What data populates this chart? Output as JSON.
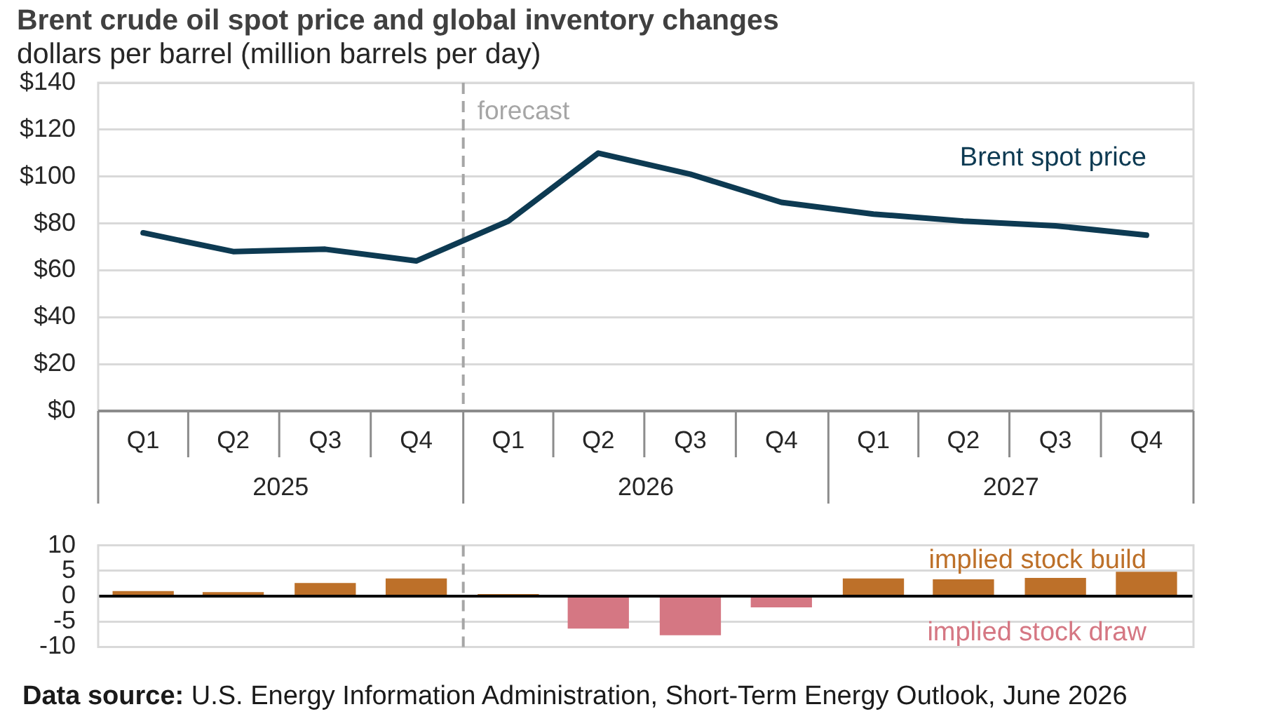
{
  "chart_data": [
    {
      "type": "line",
      "title": "Brent crude oil spot price and global inventory changes",
      "subtitle": "dollars per barrel (million barrels per day)",
      "x": [
        "2025-02-15",
        "2025-05-16",
        "2025-08-16",
        "2025-11-15",
        "2026-02-15",
        "2026-05-16",
        "2026-08-16",
        "2026-11-15",
        "2027-02-15",
        "2027-05-16",
        "2027-08-16",
        "2027-11-15"
      ],
      "series": [
        {
          "name": "Brent spot price",
          "color": "#0d3a52",
          "values": [
            76,
            68,
            69,
            64,
            81,
            110,
            101,
            89,
            84,
            81,
            79,
            75
          ]
        }
      ],
      "xlim": [
        "2025-01-01",
        "2028-01-01"
      ],
      "xticks": [
        {
          "value": "2025-02-15",
          "label": "Q1"
        },
        {
          "value": "2025-05-16",
          "label": "Q2"
        },
        {
          "value": "2025-08-16",
          "label": "Q3"
        },
        {
          "value": "2025-11-15",
          "label": "Q4"
        },
        {
          "value": "2026-02-15",
          "label": "Q1"
        },
        {
          "value": "2026-05-16",
          "label": "Q2"
        },
        {
          "value": "2026-08-16",
          "label": "Q3"
        },
        {
          "value": "2026-11-15",
          "label": "Q4"
        },
        {
          "value": "2027-02-15",
          "label": "Q1"
        },
        {
          "value": "2027-05-16",
          "label": "Q2"
        },
        {
          "value": "2027-08-16",
          "label": "Q3"
        },
        {
          "value": "2027-11-15",
          "label": "Q4"
        }
      ],
      "ylim": [
        0,
        140
      ],
      "yticks": [
        {
          "value": 0,
          "label": "$0"
        },
        {
          "value": 20,
          "label": "$20"
        },
        {
          "value": 40,
          "label": "$40"
        },
        {
          "value": 60,
          "label": "$60"
        },
        {
          "value": 80,
          "label": "$80"
        },
        {
          "value": 100,
          "label": "$100"
        },
        {
          "value": 120,
          "label": "$120"
        },
        {
          "value": 140,
          "label": "$140"
        }
      ],
      "grid": "y",
      "line_style": "solid",
      "ref_lines": [
        {
          "axis": "x",
          "value": "2026-01-01",
          "label": "forecast",
          "color": "#a6a6a6",
          "line_style": "dashed"
        }
      ],
      "annotations": [
        "2025",
        "2026",
        "2027"
      ]
    },
    {
      "type": "bar",
      "x": [
        "2025-02-15",
        "2025-05-16",
        "2025-08-16",
        "2025-11-15",
        "2026-02-15",
        "2026-05-16",
        "2026-08-16",
        "2026-11-15",
        "2027-02-15",
        "2027-05-16",
        "2027-08-16",
        "2027-11-15"
      ],
      "series": [
        {
          "name": "implied stock build",
          "color": "#bd7029",
          "values": [
            1.0,
            0.8,
            2.6,
            3.5,
            0.4,
            null,
            null,
            null,
            3.5,
            3.3,
            3.6,
            4.8
          ]
        },
        {
          "name": "implied stock draw",
          "color": "#d57783",
          "values": [
            null,
            null,
            null,
            null,
            null,
            -6.4,
            -7.7,
            -2.2,
            null,
            null,
            null,
            null
          ]
        }
      ],
      "xlim": [
        "2025-01-01",
        "2028-01-01"
      ],
      "stacked": true,
      "ylim": [
        -10,
        10
      ],
      "yticks": [
        -10,
        -5,
        0,
        5,
        10
      ],
      "grid": "y",
      "tick_labels": "y",
      "ref_lines": [
        {
          "axis": "x",
          "value": "2026-01-01",
          "color": "#a6a6a6",
          "line_style": "dashed"
        }
      ],
      "annotations": [
        "Data source: U.S. Energy Information Administration, Short-Term Energy Outlook, June 2026"
      ]
    }
  ]
}
